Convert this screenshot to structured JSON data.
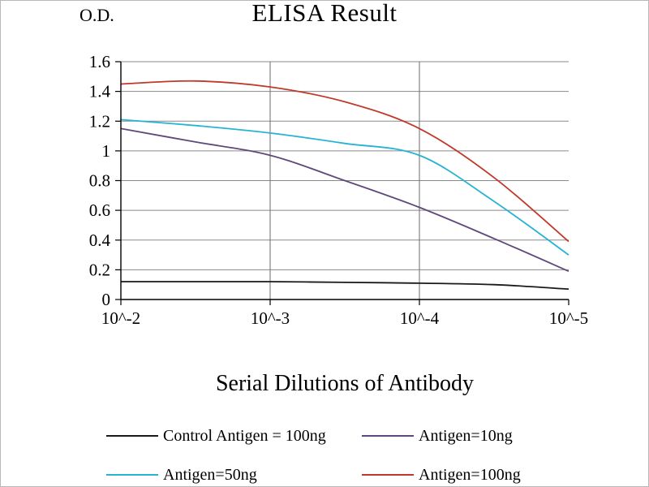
{
  "chart_data": {
    "type": "line",
    "title": "ELISA Result",
    "ylabel": "O.D.",
    "xlabel": "Serial Dilutions of Antibody",
    "x_tick_labels": [
      "10^-2",
      "10^-3",
      "10^-4",
      "10^-5"
    ],
    "y_ticks": [
      0,
      0.2,
      0.4,
      0.6,
      0.8,
      1,
      1.2,
      1.4,
      1.6
    ],
    "ylim": [
      0,
      1.6
    ],
    "grid": true,
    "legend_position": "bottom",
    "axis_color": "#000000",
    "gridline_color": "#8a8a8a",
    "vertical_gridline_color": "#6b6b6b",
    "series": [
      {
        "id": "control-antigen-100ng",
        "name": "Control Antigen = 100ng",
        "color": "#1a1a1a",
        "x": [
          0,
          0.5,
          1,
          1.5,
          2,
          2.5,
          3
        ],
        "values": [
          0.12,
          0.12,
          0.12,
          0.115,
          0.11,
          0.1,
          0.07
        ]
      },
      {
        "id": "antigen-10ng",
        "name": "Antigen=10ng",
        "color": "#5f497a",
        "x": [
          0,
          0.5,
          1,
          1.5,
          2,
          2.5,
          3
        ],
        "values": [
          1.15,
          1.06,
          0.97,
          0.8,
          0.62,
          0.41,
          0.19
        ]
      },
      {
        "id": "antigen-50ng",
        "name": "Antigen=50ng",
        "color": "#27b3d4",
        "x": [
          0,
          0.5,
          1,
          1.5,
          2,
          2.5,
          3
        ],
        "values": [
          1.21,
          1.17,
          1.12,
          1.05,
          0.97,
          0.66,
          0.3
        ]
      },
      {
        "id": "antigen-100ng",
        "name": "Antigen=100ng",
        "color": "#c0392b",
        "x": [
          0,
          0.5,
          1,
          1.5,
          2,
          2.5,
          3
        ],
        "values": [
          1.45,
          1.47,
          1.43,
          1.33,
          1.15,
          0.82,
          0.39
        ]
      }
    ]
  }
}
